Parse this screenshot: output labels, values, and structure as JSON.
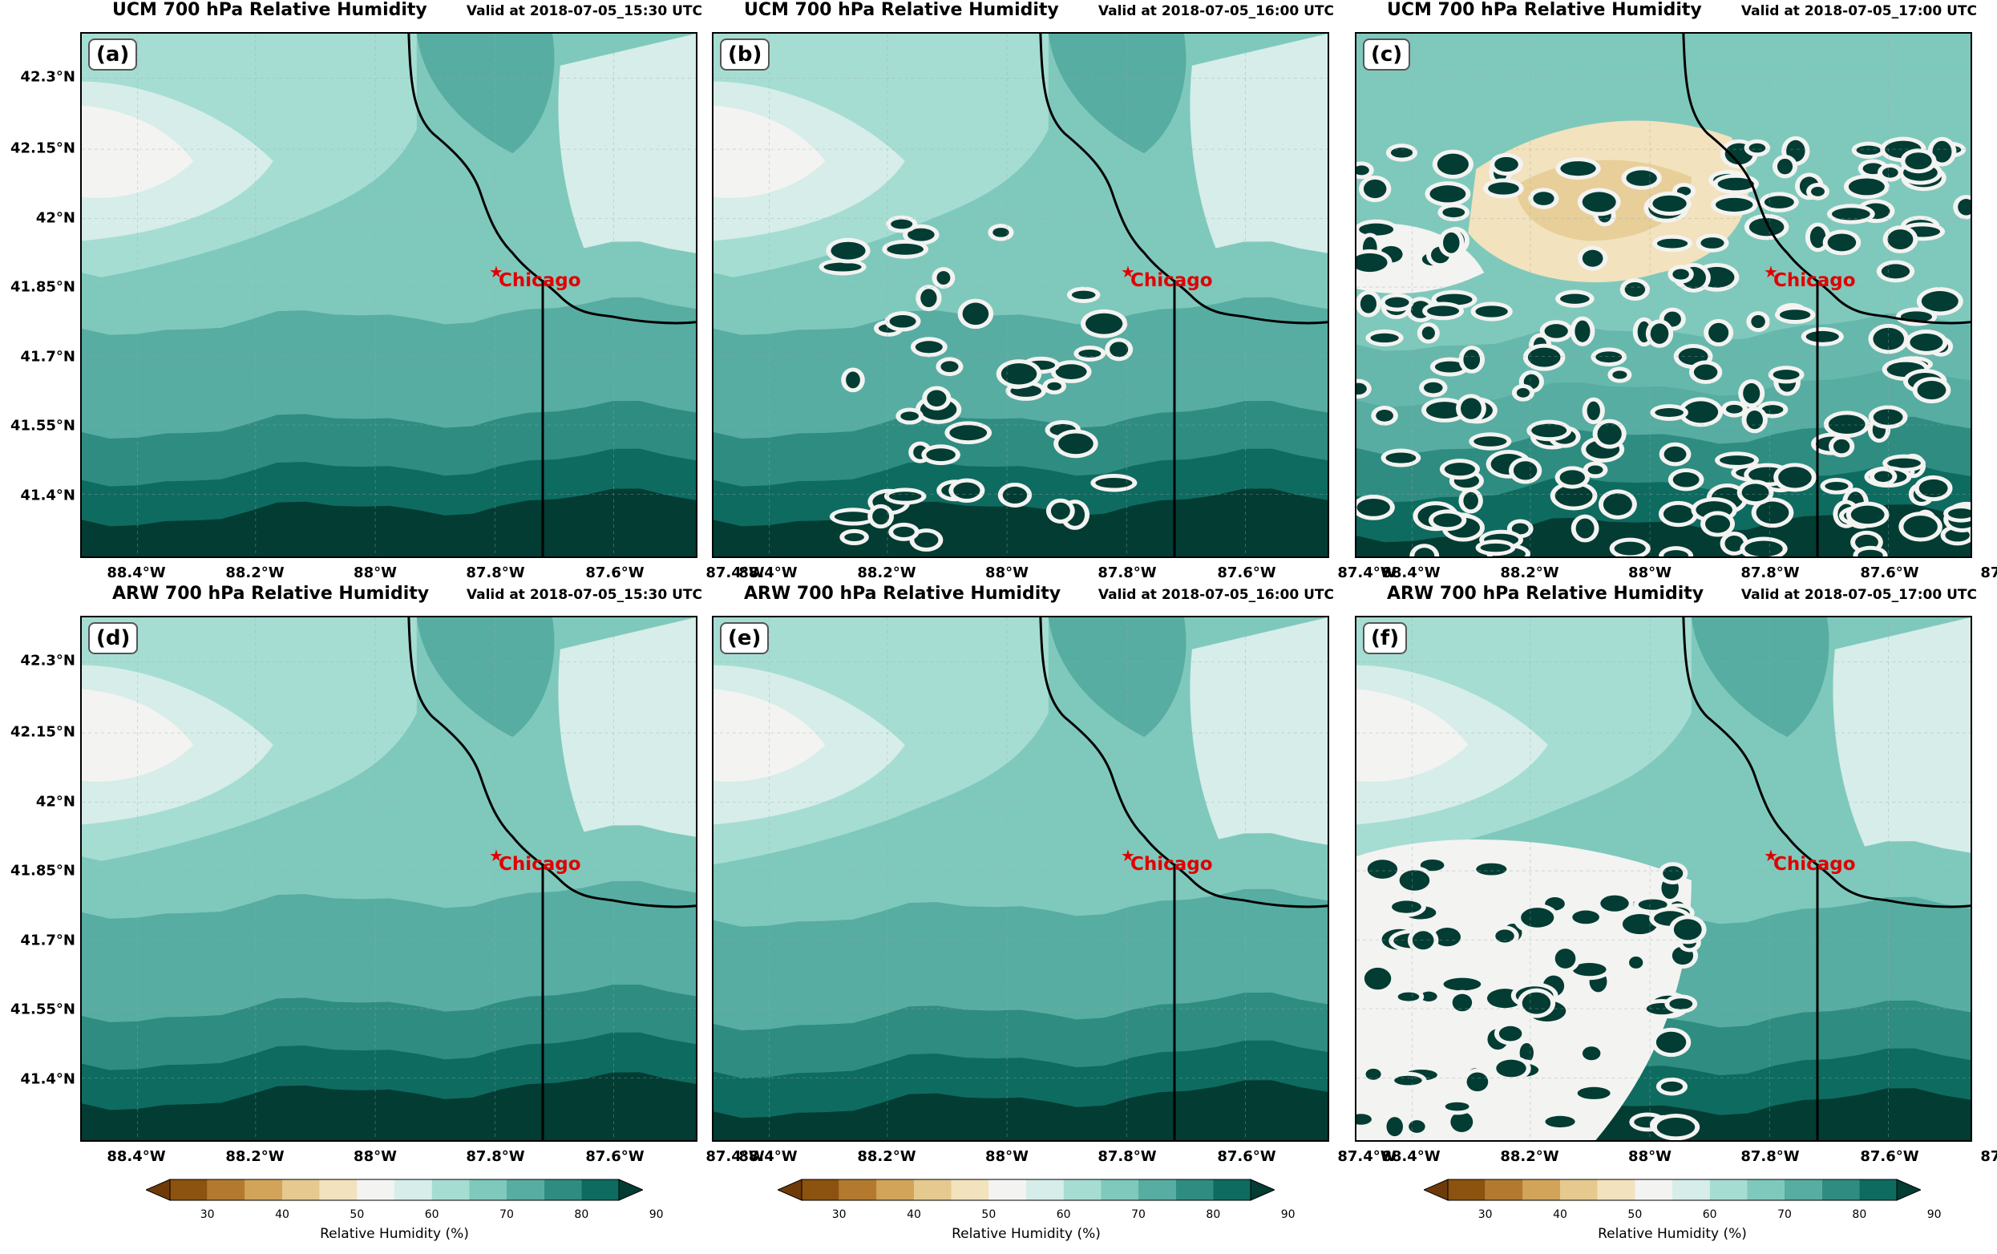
{
  "colors": {
    "scale": [
      "#6e3b08",
      "#8c520f",
      "#b37a2f",
      "#d2a45a",
      "#e5c98e",
      "#f2e2bd",
      "#f3f3f1",
      "#d6ede9",
      "#a6ddd3",
      "#7fc9bc",
      "#57ada1",
      "#2f8c81",
      "#0e6b60",
      "#023c33"
    ],
    "state_line": "#000000",
    "city": "#e00000"
  },
  "panels": [
    {
      "id": "a",
      "label": "(a)",
      "title": "UCM 700 hPa Relative Humidity",
      "valid": "Valid at 2018-07-05_15:30 UTC",
      "pattern": "smooth_ucm"
    },
    {
      "id": "b",
      "label": "(b)",
      "title": "UCM 700 hPa Relative Humidity",
      "valid": "Valid at 2018-07-05_16:00 UTC",
      "pattern": "cells_medium"
    },
    {
      "id": "c",
      "label": "(c)",
      "title": "UCM 700 hPa Relative Humidity",
      "valid": "Valid at 2018-07-05_17:00 UTC",
      "pattern": "cells_dense"
    },
    {
      "id": "d",
      "label": "(d)",
      "title": "ARW 700 hPa Relative Humidity",
      "valid": "Valid at 2018-07-05_15:30 UTC",
      "pattern": "smooth_arw"
    },
    {
      "id": "e",
      "label": "(e)",
      "title": "ARW 700 hPa Relative Humidity",
      "valid": "Valid at 2018-07-05_16:00 UTC",
      "pattern": "smooth_arw2"
    },
    {
      "id": "f",
      "label": "(f)",
      "title": "ARW 700 hPa Relative Humidity",
      "valid": "Valid at 2018-07-05_17:00 UTC",
      "pattern": "cells_sw"
    }
  ],
  "city_label": "Chicago",
  "x_ticks": [
    "88.4°W",
    "88.2°W",
    "88°W",
    "87.8°W",
    "87.6°W",
    "87.4°W"
  ],
  "y_ticks": [
    "42.3°N",
    "42.15°N",
    "42°N",
    "41.85°N",
    "41.7°N",
    "41.55°N",
    "41.4°N"
  ],
  "colorbar": {
    "ticks": [
      "30",
      "40",
      "50",
      "60",
      "70",
      "80",
      "90"
    ],
    "label": "Relative Humidity (%)",
    "extend": "both"
  }
}
